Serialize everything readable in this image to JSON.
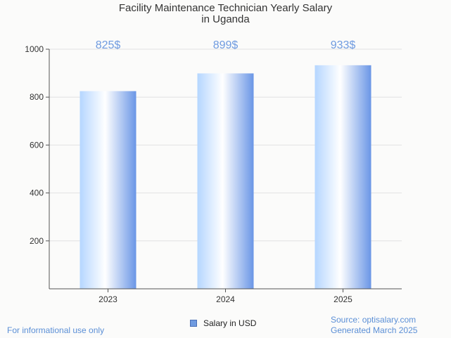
{
  "chart_data": {
    "type": "bar",
    "title_lines": [
      "Facility Maintenance Technician Yearly Salary",
      "in Uganda"
    ],
    "categories": [
      "2023",
      "2024",
      "2025"
    ],
    "series": [
      {
        "name": "Salary in USD",
        "values": [
          825,
          899,
          933
        ]
      }
    ],
    "data_labels": [
      "825$",
      "899$",
      "933$"
    ],
    "yticks": [
      200,
      400,
      600,
      800,
      1000
    ],
    "ylim": [
      0,
      1000
    ],
    "grid": true,
    "legend_position": "bottom-center"
  },
  "colors": {
    "bar_light": "#ffffff",
    "bar_mid": "#b5d6ff",
    "bar_dark": "#6a96e6",
    "data_label": "#6f9be0",
    "grid": "#e2e2e2",
    "axis": "#555555"
  },
  "footer": {
    "disclaimer": "For informational use only",
    "source": "Source: optisalary.com",
    "generated": "Generated March 2025"
  }
}
